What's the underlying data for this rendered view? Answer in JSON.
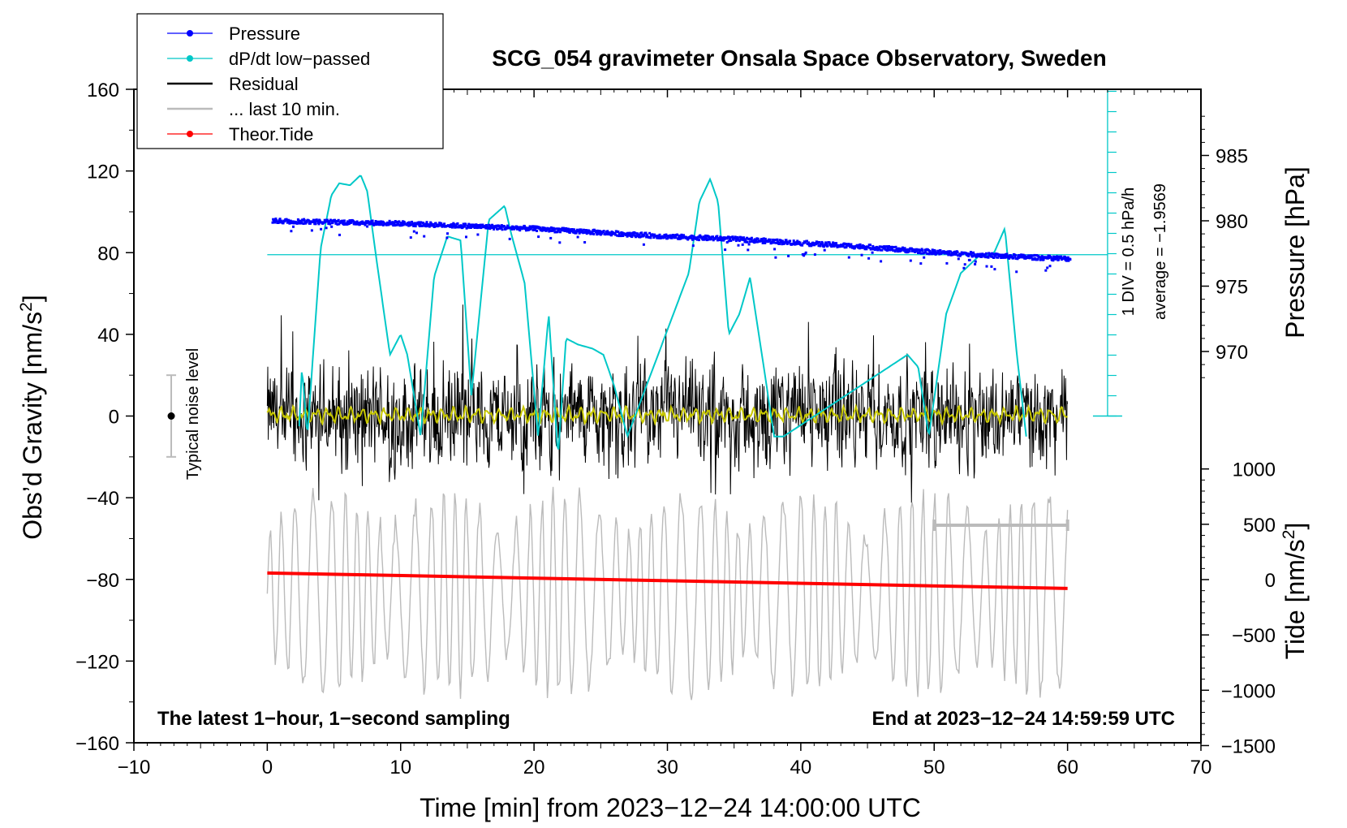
{
  "chart_data": {
    "type": "line",
    "title": "SCG_054 gravimeter Onsala Space Observatory, Sweden",
    "xlabel": "Time [min] from 2023−12−24 14:00:00 UTC",
    "ylabel_left": "Obs’d Gravity [nm/s",
    "ylabel_left_sup": "2",
    "ylabel_left_end": "]",
    "ylabel_right_pressure": "Pressure [hPa]",
    "ylabel_right_tide": "Tide [nm/s",
    "ylabel_right_tide_sup": "2",
    "ylabel_right_tide_end": "]",
    "xlim": [
      -10,
      70
    ],
    "ylim_left": [
      -160,
      160
    ],
    "x_ticks": [
      -10,
      0,
      10,
      20,
      30,
      40,
      50,
      60,
      70
    ],
    "x_tick_labels": [
      "−10",
      "0",
      "10",
      "20",
      "30",
      "40",
      "50",
      "60",
      "70"
    ],
    "y_ticks_left": [
      -160,
      -120,
      -80,
      -40,
      0,
      40,
      80,
      120,
      160
    ],
    "y_tick_labels_left": [
      "−160",
      "−120",
      "−80",
      "−40",
      "0",
      "40",
      "80",
      "120",
      "160"
    ],
    "pressure_ticks": [
      970,
      975,
      980,
      985
    ],
    "pressure_tick_labels": [
      "970",
      "975",
      "980",
      "985"
    ],
    "tide_ticks": [
      -1500,
      -1000,
      -500,
      0,
      500,
      1000
    ],
    "tide_tick_labels": [
      "−1500",
      "−1000",
      "−500",
      "0",
      "500",
      "1000"
    ],
    "legend": [
      {
        "label": "Pressure",
        "color": "#0000ff",
        "marker": true
      },
      {
        "label": "dP/dt low−passed",
        "color": "#00c8c8",
        "marker": true
      },
      {
        "label": "Residual",
        "color": "#000000",
        "marker": false
      },
      {
        "label": "... last 10 min.",
        "color": "#bbbbbb",
        "marker": false
      },
      {
        "label": "Theor.Tide",
        "color": "#ff0000",
        "marker": true
      }
    ],
    "series": [
      {
        "name": "Pressure",
        "axis": "pressure_hPa",
        "color": "#0000ff",
        "x": [
          0,
          5,
          10,
          15,
          20,
          25,
          30,
          35,
          40,
          45,
          50,
          55,
          60
        ],
        "values": [
          980.0,
          979.9,
          979.8,
          979.6,
          979.4,
          979.1,
          978.8,
          978.6,
          978.3,
          978.0,
          977.6,
          977.3,
          977.1
        ]
      },
      {
        "name": "dP/dt low−passed",
        "axis": "gravity_display_units",
        "color": "#00c8c8",
        "baseline_y": 79,
        "scale_per_div": "0.5 hPa/h",
        "x": [
          2.4,
          2.6,
          3.0,
          4.0,
          4.8,
          5.4,
          6.2,
          7.0,
          7.5,
          8.2,
          9.2,
          10.0,
          10.5,
          11.5,
          12.5,
          13.5,
          14.5,
          15.3,
          16.6,
          17.8,
          18.3,
          19.3,
          20.3,
          21.1,
          21.8,
          22.4,
          23.3,
          24.4,
          25.2,
          26.0,
          27.0,
          31.6,
          32.4,
          33.2,
          33.8,
          34.6,
          35.4,
          36.2,
          37.2,
          38.0,
          38.7,
          48.0,
          48.8,
          49.6,
          50.9,
          52.0,
          53.3,
          54.5,
          55.3,
          56.2,
          56.9
        ],
        "values": [
          -5,
          24,
          -10,
          82,
          108,
          114,
          113,
          118,
          110,
          76,
          30,
          40,
          30,
          -10,
          68,
          88,
          86,
          10,
          96,
          103,
          89,
          65,
          -10,
          50,
          -20,
          38,
          35,
          33,
          30,
          15,
          -10,
          70,
          105,
          116,
          105,
          40,
          50,
          68,
          25,
          -10,
          -10,
          30,
          24,
          -10,
          50,
          70,
          78,
          80,
          92,
          30,
          -10
        ]
      },
      {
        "name": "Residual",
        "axis": "gravity_nm_s2",
        "color": "#000000",
        "x_range": [
          0,
          60
        ],
        "approx_min": -52,
        "approx_max": 71,
        "typical_amplitude": 30
      },
      {
        "name": "Residual low−pass",
        "axis": "gravity_nm_s2",
        "color": "#c8c800",
        "x_range": [
          0,
          60
        ],
        "approx_min": -4,
        "approx_max": 6
      },
      {
        "name": "... last 10 min.",
        "axis": "gravity_display_units",
        "color": "#bbbbbb",
        "x_range": [
          0,
          60
        ],
        "approx_min": -141,
        "approx_max": -33,
        "interval_bar": [
          50,
          60
        ]
      },
      {
        "name": "Theor.Tide",
        "axis": "tide_nm_s2",
        "color": "#ff0000",
        "x": [
          0,
          60
        ],
        "values": [
          60,
          -80
        ]
      }
    ],
    "dpdt_scale_label": "1 DIV = 0.5 hPa/h",
    "dpdt_average_label": "average = −1.9569",
    "noise_label": "Typical noise level",
    "noise_range": [
      -20,
      20
    ],
    "note_left": "The latest 1−hour, 1−second sampling",
    "note_right": "End at 2023−12−24 14:59:59 UTC"
  }
}
